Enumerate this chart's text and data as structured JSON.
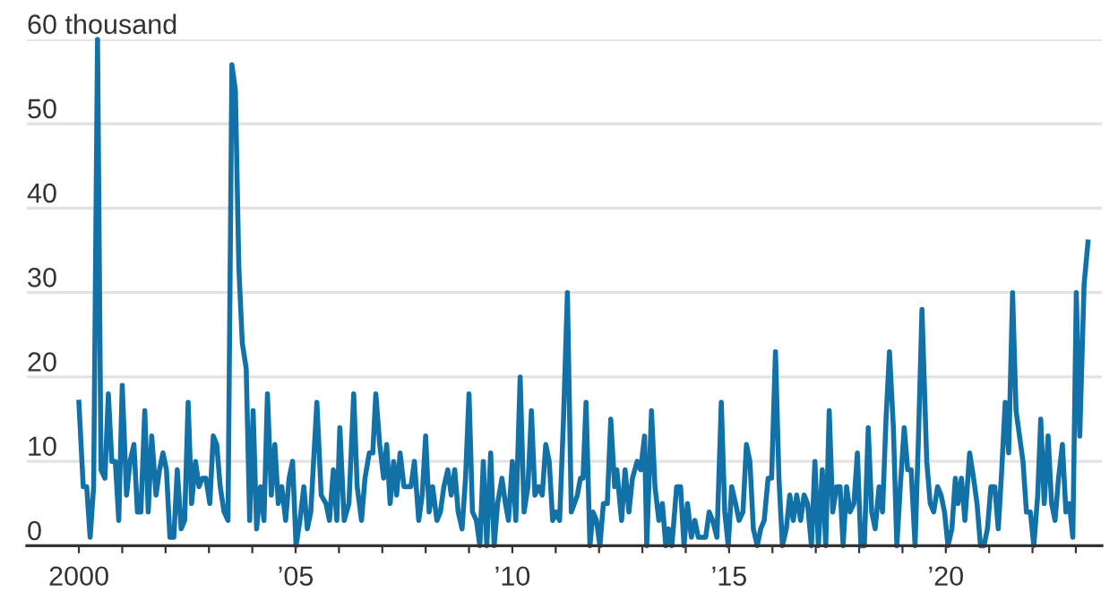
{
  "chart_data": {
    "type": "line",
    "x": [
      2000.0,
      2000.1,
      2000.18,
      2000.26,
      2000.34,
      2000.43,
      2000.51,
      2000.6,
      2000.68,
      2000.76,
      2000.84,
      2000.92,
      2001.0,
      2001.1,
      2001.18,
      2001.27,
      2001.35,
      2001.43,
      2001.52,
      2001.6,
      2001.68,
      2001.78,
      2001.86,
      2001.94,
      2002.02,
      2002.1,
      2002.19,
      2002.27,
      2002.36,
      2002.44,
      2002.52,
      2002.6,
      2002.69,
      2002.77,
      2002.85,
      2002.93,
      2003.02,
      2003.1,
      2003.18,
      2003.26,
      2003.35,
      2003.44,
      2003.53,
      2003.61,
      2003.69,
      2003.77,
      2003.86,
      2003.94,
      2004.02,
      2004.1,
      2004.19,
      2004.27,
      2004.35,
      2004.44,
      2004.52,
      2004.6,
      2004.68,
      2004.77,
      2004.85,
      2004.93,
      2005.01,
      2005.1,
      2005.19,
      2005.27,
      2005.35,
      2005.49,
      2005.59,
      2005.7,
      2005.78,
      2005.87,
      2005.95,
      2006.02,
      2006.12,
      2006.23,
      2006.34,
      2006.42,
      2006.52,
      2006.6,
      2006.7,
      2006.78,
      2006.85,
      2006.94,
      2007.03,
      2007.1,
      2007.18,
      2007.26,
      2007.33,
      2007.41,
      2007.5,
      2007.58,
      2007.66,
      2007.74,
      2007.84,
      2007.92,
      2008.0,
      2008.08,
      2008.16,
      2008.26,
      2008.34,
      2008.42,
      2008.51,
      2008.59,
      2008.67,
      2008.75,
      2008.84,
      2008.92,
      2009.0,
      2009.08,
      2009.17,
      2009.25,
      2009.33,
      2009.41,
      2009.5,
      2009.58,
      2009.66,
      2009.76,
      2009.84,
      2009.91,
      2010.0,
      2010.08,
      2010.18,
      2010.27,
      2010.36,
      2010.44,
      2010.52,
      2010.61,
      2010.69,
      2010.77,
      2010.85,
      2010.93,
      2011.01,
      2011.09,
      2011.18,
      2011.27,
      2011.36,
      2011.5,
      2011.57,
      2011.63,
      2011.7,
      2011.79,
      2011.86,
      2011.94,
      2012.02,
      2012.1,
      2012.19,
      2012.27,
      2012.36,
      2012.41,
      2012.52,
      2012.6,
      2012.69,
      2012.77,
      2012.88,
      2012.96,
      2013.05,
      2013.1,
      2013.21,
      2013.29,
      2013.38,
      2013.46,
      2013.54,
      2013.6,
      2013.68,
      2013.79,
      2013.88,
      2013.96,
      2014.04,
      2014.13,
      2014.21,
      2014.29,
      2014.37,
      2014.46,
      2014.54,
      2014.62,
      2014.72,
      2014.82,
      2014.9,
      2014.98,
      2015.06,
      2015.15,
      2015.23,
      2015.32,
      2015.4,
      2015.48,
      2015.56,
      2015.65,
      2015.73,
      2015.81,
      2015.9,
      2015.98,
      2016.07,
      2016.15,
      2016.23,
      2016.32,
      2016.4,
      2016.48,
      2016.56,
      2016.65,
      2016.73,
      2016.81,
      2016.9,
      2016.98,
      2017.06,
      2017.15,
      2017.23,
      2017.31,
      2017.39,
      2017.48,
      2017.56,
      2017.63,
      2017.71,
      2017.79,
      2017.88,
      2017.96,
      2018.04,
      2018.12,
      2018.21,
      2018.29,
      2018.37,
      2018.46,
      2018.54,
      2018.62,
      2018.7,
      2018.79,
      2018.87,
      2018.95,
      2019.04,
      2019.12,
      2019.2,
      2019.29,
      2019.37,
      2019.45,
      2019.56,
      2019.64,
      2019.72,
      2019.81,
      2019.89,
      2019.97,
      2020.05,
      2020.14,
      2020.22,
      2020.28,
      2020.36,
      2020.44,
      2020.55,
      2020.64,
      2020.72,
      2020.8,
      2020.88,
      2020.96,
      2021.04,
      2021.13,
      2021.21,
      2021.29,
      2021.37,
      2021.45,
      2021.54,
      2021.62,
      2021.7,
      2021.78,
      2021.86,
      2021.95,
      2022.03,
      2022.12,
      2022.19,
      2022.27,
      2022.36,
      2022.44,
      2022.52,
      2022.6,
      2022.69,
      2022.77,
      2022.85,
      2022.93,
      2023.01,
      2023.09,
      2023.19,
      2023.28
    ],
    "series": [
      {
        "color": "#1272a8",
        "values": [
          17,
          7,
          7,
          1,
          7,
          60,
          9,
          8,
          18,
          10,
          10,
          3,
          19,
          6,
          10,
          12,
          4,
          4,
          16,
          4,
          13,
          6,
          9,
          11,
          9,
          1,
          1,
          9,
          2,
          3,
          17,
          5,
          10,
          7,
          8,
          8,
          5,
          13,
          12,
          7,
          4,
          3,
          57,
          54,
          33,
          24,
          21,
          3,
          16,
          2,
          7,
          3,
          18,
          6,
          12,
          5,
          7,
          3,
          8,
          10,
          0,
          3,
          7,
          2,
          4,
          17,
          6,
          5,
          3,
          9,
          3,
          14,
          3,
          5,
          18,
          7,
          3,
          8,
          11,
          11,
          18,
          12,
          8,
          12,
          5,
          10,
          6,
          11,
          7,
          7,
          7,
          10,
          3,
          6,
          13,
          4,
          7,
          3,
          4,
          7,
          9,
          6,
          9,
          4,
          2,
          8,
          18,
          4,
          3,
          0,
          10,
          0,
          11,
          0,
          5,
          8,
          5,
          3,
          10,
          3,
          20,
          4,
          7,
          16,
          6,
          7,
          6,
          12,
          10,
          3,
          4,
          3,
          15,
          30,
          4,
          6,
          8,
          8,
          17,
          0,
          4,
          3,
          0,
          5,
          5,
          15,
          7,
          9,
          3,
          9,
          4,
          8,
          10,
          9,
          13,
          0,
          16,
          7,
          3,
          5,
          0,
          2,
          0,
          7,
          7,
          0,
          5,
          1,
          3,
          1,
          1,
          1,
          4,
          3,
          1,
          17,
          4,
          0,
          7,
          5,
          3,
          4,
          12,
          10,
          2,
          0,
          2,
          3,
          8,
          8,
          23,
          8,
          0,
          2,
          6,
          3,
          6,
          3,
          6,
          5,
          0,
          10,
          0,
          9,
          0,
          16,
          4,
          7,
          7,
          0,
          7,
          4,
          5,
          11,
          0,
          0,
          14,
          4,
          2,
          7,
          4,
          15,
          23,
          14,
          0,
          7,
          14,
          9,
          9,
          0,
          13,
          28,
          10,
          5,
          4,
          7,
          6,
          4,
          0,
          2,
          8,
          5,
          8,
          3,
          11,
          8,
          5,
          0,
          0,
          2,
          7,
          7,
          2,
          9,
          17,
          11,
          30,
          16,
          13,
          10,
          4,
          4,
          0,
          6,
          15,
          5,
          13,
          5,
          3,
          8,
          12,
          4,
          5,
          1,
          30,
          13,
          31,
          36
        ]
      }
    ],
    "xlim": [
      1998.8,
      2023.6
    ],
    "xticks": [
      {
        "value": 2000,
        "label": "2000"
      },
      {
        "value": 2001,
        "label": null
      },
      {
        "value": 2002,
        "label": null
      },
      {
        "value": 2003,
        "label": null
      },
      {
        "value": 2004,
        "label": null
      },
      {
        "value": 2005,
        "label": "’05"
      },
      {
        "value": 2006,
        "label": null
      },
      {
        "value": 2007,
        "label": null
      },
      {
        "value": 2008,
        "label": null
      },
      {
        "value": 2009,
        "label": null
      },
      {
        "value": 2010,
        "label": "’10"
      },
      {
        "value": 2011,
        "label": null
      },
      {
        "value": 2012,
        "label": null
      },
      {
        "value": 2013,
        "label": null
      },
      {
        "value": 2014,
        "label": null
      },
      {
        "value": 2015,
        "label": "’15"
      },
      {
        "value": 2016,
        "label": null
      },
      {
        "value": 2017,
        "label": null
      },
      {
        "value": 2018,
        "label": null
      },
      {
        "value": 2019,
        "label": null
      },
      {
        "value": 2020,
        "label": "’20"
      },
      {
        "value": 2021,
        "label": null
      },
      {
        "value": 2022,
        "label": null
      },
      {
        "value": 2023,
        "label": null
      }
    ],
    "ylim": [
      0,
      60
    ],
    "yticks": [
      0,
      10,
      20,
      30,
      40,
      50,
      {
        "value": 60,
        "label": "60 thousand"
      }
    ],
    "grid": "y",
    "legend": false,
    "marker": "none",
    "line_style": "solid"
  }
}
